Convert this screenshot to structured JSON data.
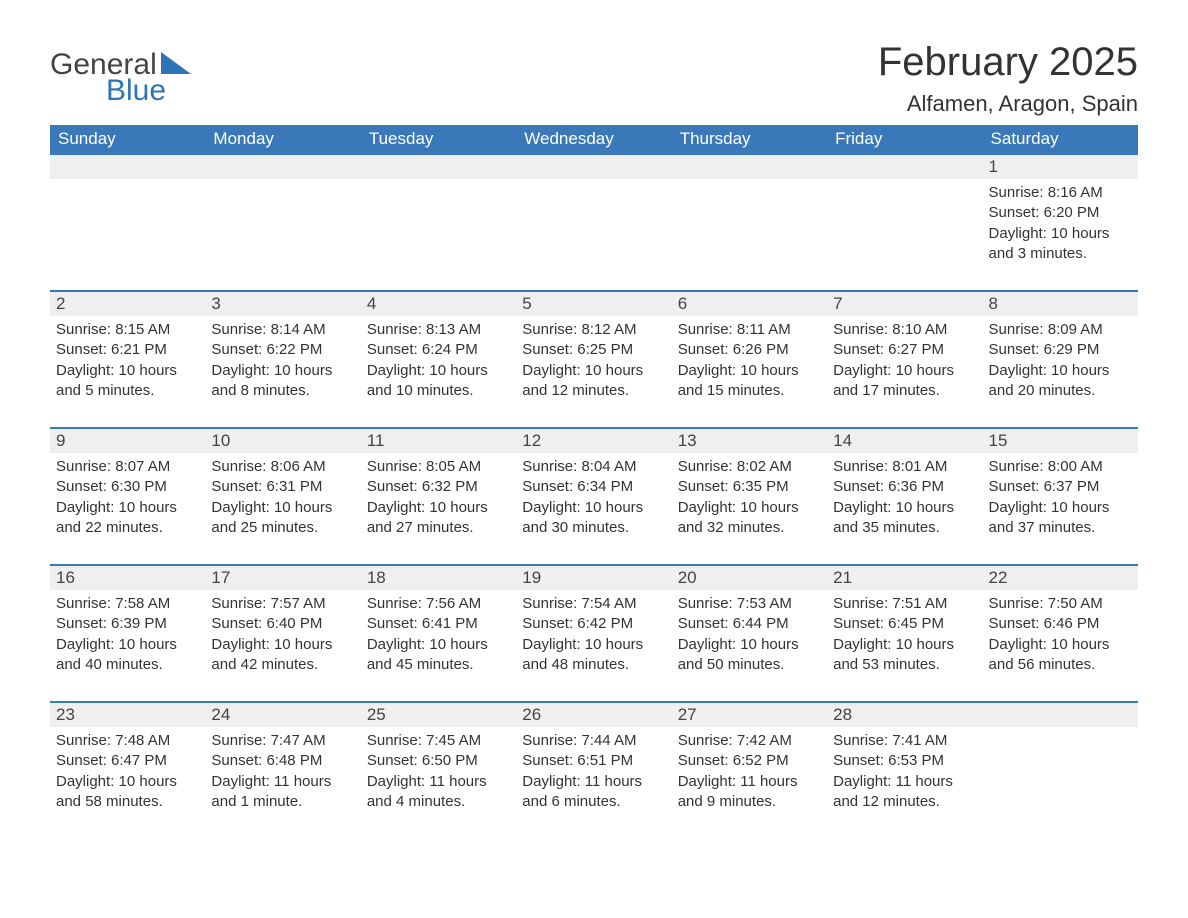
{
  "logo": {
    "text1": "General",
    "text2": "Blue"
  },
  "title": "February 2025",
  "location": "Alfamen, Aragon, Spain",
  "colors": {
    "header_bg": "#3a78b9",
    "header_text": "#ffffff",
    "daynum_bg": "#efefef",
    "row_border": "#3a78b9",
    "logo_accent": "#2f74b5",
    "body_text": "#333333",
    "page_bg": "#ffffff"
  },
  "day_headers": [
    "Sunday",
    "Monday",
    "Tuesday",
    "Wednesday",
    "Thursday",
    "Friday",
    "Saturday"
  ],
  "weeks": [
    {
      "nums": [
        "",
        "",
        "",
        "",
        "",
        "",
        "1"
      ],
      "details": [
        "",
        "",
        "",
        "",
        "",
        "",
        "Sunrise: 8:16 AM\nSunset: 6:20 PM\nDaylight: 10 hours and 3 minutes."
      ]
    },
    {
      "nums": [
        "2",
        "3",
        "4",
        "5",
        "6",
        "7",
        "8"
      ],
      "details": [
        "Sunrise: 8:15 AM\nSunset: 6:21 PM\nDaylight: 10 hours and 5 minutes.",
        "Sunrise: 8:14 AM\nSunset: 6:22 PM\nDaylight: 10 hours and 8 minutes.",
        "Sunrise: 8:13 AM\nSunset: 6:24 PM\nDaylight: 10 hours and 10 minutes.",
        "Sunrise: 8:12 AM\nSunset: 6:25 PM\nDaylight: 10 hours and 12 minutes.",
        "Sunrise: 8:11 AM\nSunset: 6:26 PM\nDaylight: 10 hours and 15 minutes.",
        "Sunrise: 8:10 AM\nSunset: 6:27 PM\nDaylight: 10 hours and 17 minutes.",
        "Sunrise: 8:09 AM\nSunset: 6:29 PM\nDaylight: 10 hours and 20 minutes."
      ]
    },
    {
      "nums": [
        "9",
        "10",
        "11",
        "12",
        "13",
        "14",
        "15"
      ],
      "details": [
        "Sunrise: 8:07 AM\nSunset: 6:30 PM\nDaylight: 10 hours and 22 minutes.",
        "Sunrise: 8:06 AM\nSunset: 6:31 PM\nDaylight: 10 hours and 25 minutes.",
        "Sunrise: 8:05 AM\nSunset: 6:32 PM\nDaylight: 10 hours and 27 minutes.",
        "Sunrise: 8:04 AM\nSunset: 6:34 PM\nDaylight: 10 hours and 30 minutes.",
        "Sunrise: 8:02 AM\nSunset: 6:35 PM\nDaylight: 10 hours and 32 minutes.",
        "Sunrise: 8:01 AM\nSunset: 6:36 PM\nDaylight: 10 hours and 35 minutes.",
        "Sunrise: 8:00 AM\nSunset: 6:37 PM\nDaylight: 10 hours and 37 minutes."
      ]
    },
    {
      "nums": [
        "16",
        "17",
        "18",
        "19",
        "20",
        "21",
        "22"
      ],
      "details": [
        "Sunrise: 7:58 AM\nSunset: 6:39 PM\nDaylight: 10 hours and 40 minutes.",
        "Sunrise: 7:57 AM\nSunset: 6:40 PM\nDaylight: 10 hours and 42 minutes.",
        "Sunrise: 7:56 AM\nSunset: 6:41 PM\nDaylight: 10 hours and 45 minutes.",
        "Sunrise: 7:54 AM\nSunset: 6:42 PM\nDaylight: 10 hours and 48 minutes.",
        "Sunrise: 7:53 AM\nSunset: 6:44 PM\nDaylight: 10 hours and 50 minutes.",
        "Sunrise: 7:51 AM\nSunset: 6:45 PM\nDaylight: 10 hours and 53 minutes.",
        "Sunrise: 7:50 AM\nSunset: 6:46 PM\nDaylight: 10 hours and 56 minutes."
      ]
    },
    {
      "nums": [
        "23",
        "24",
        "25",
        "26",
        "27",
        "28",
        ""
      ],
      "details": [
        "Sunrise: 7:48 AM\nSunset: 6:47 PM\nDaylight: 10 hours and 58 minutes.",
        "Sunrise: 7:47 AM\nSunset: 6:48 PM\nDaylight: 11 hours and 1 minute.",
        "Sunrise: 7:45 AM\nSunset: 6:50 PM\nDaylight: 11 hours and 4 minutes.",
        "Sunrise: 7:44 AM\nSunset: 6:51 PM\nDaylight: 11 hours and 6 minutes.",
        "Sunrise: 7:42 AM\nSunset: 6:52 PM\nDaylight: 11 hours and 9 minutes.",
        "Sunrise: 7:41 AM\nSunset: 6:53 PM\nDaylight: 11 hours and 12 minutes.",
        ""
      ]
    }
  ]
}
